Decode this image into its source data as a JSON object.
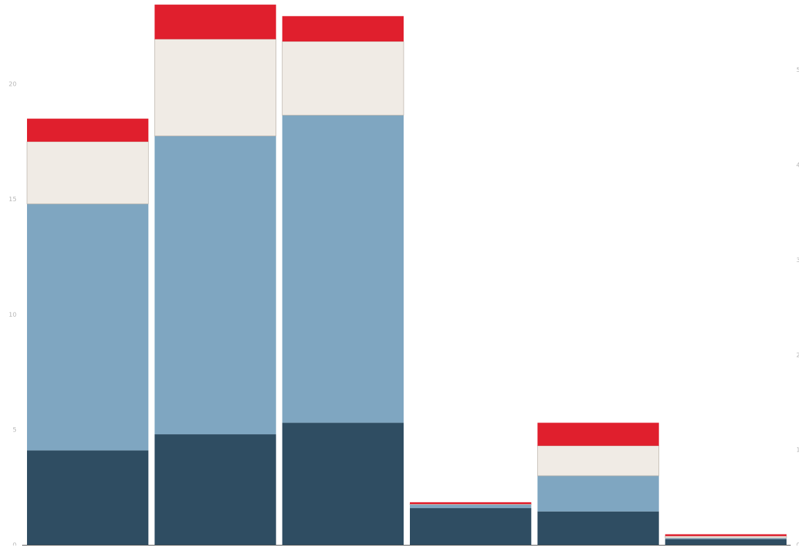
{
  "chart_data": {
    "type": "bar",
    "stacked": true,
    "categories": [
      "",
      "",
      "",
      "",
      "",
      ""
    ],
    "series": [
      {
        "values": [
          4.1,
          4.8,
          5.3,
          1.6,
          1.45,
          0.25
        ]
      },
      {
        "values": [
          10.7,
          12.95,
          13.35,
          0.15,
          1.55,
          0.05
        ]
      },
      {
        "values": [
          2.7,
          4.2,
          3.2,
          0.02,
          1.3,
          0.08
        ]
      },
      {
        "values": [
          1.0,
          1.5,
          1.1,
          0.08,
          1.0,
          0.08
        ]
      }
    ],
    "colors": [
      "#2f4d62",
      "#7fa6c1",
      "#f0ebe5",
      "#e01f2d"
    ],
    "outline_color": "#bdb5ac",
    "axis_color": "#555555",
    "ylim": [
      0,
      23.5
    ],
    "left_axis": {
      "ticks": [
        0,
        5,
        10,
        15,
        20
      ],
      "labels": [
        "0",
        "5",
        "10",
        "15",
        "20"
      ]
    },
    "right_axis": {
      "ylim": [
        0,
        5.7
      ],
      "ticks": [
        0,
        1,
        2,
        3,
        4,
        5
      ],
      "labels": [
        "0",
        "1",
        "2",
        "3",
        "4",
        "5"
      ]
    },
    "xlabel": "",
    "ylabel": "",
    "title": ""
  }
}
